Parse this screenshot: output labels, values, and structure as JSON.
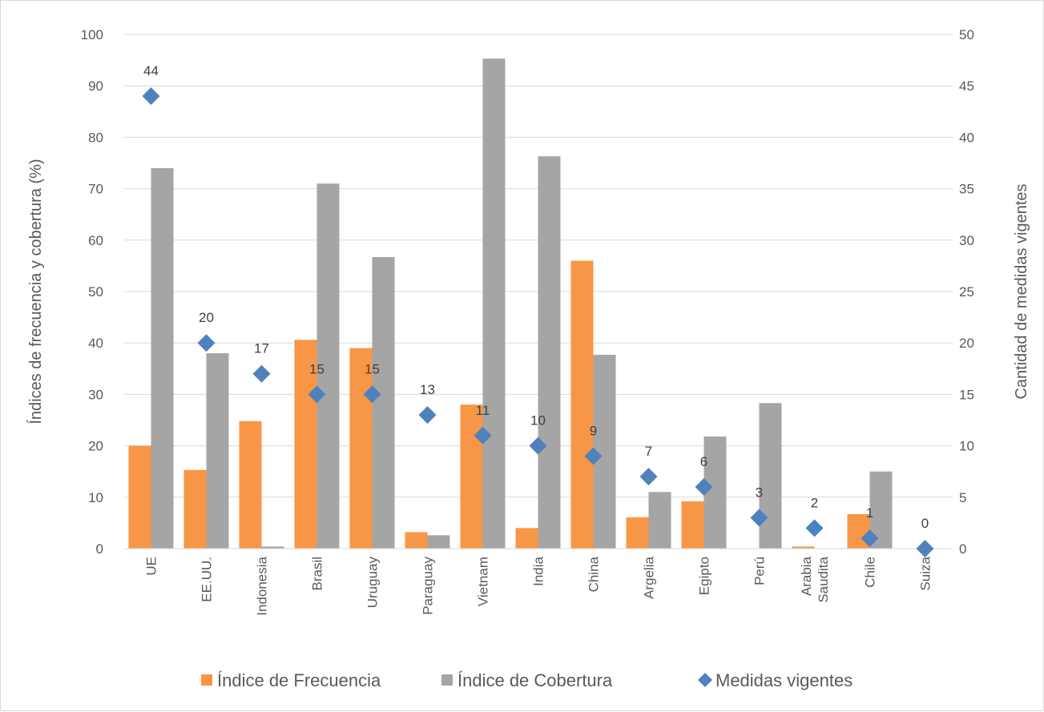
{
  "chart_data": {
    "type": "bar",
    "categories": [
      "UE",
      "EE.UU.",
      "Indonesia",
      "Brasil",
      "Uruguay",
      "Paraguay",
      "Vietnam",
      "India",
      "China",
      "Argelia",
      "Egipto",
      "Perú",
      [
        "Arabia",
        "Saudita"
      ],
      "Chile",
      "Suiza"
    ],
    "series": [
      {
        "name": "Índice de Frecuencia",
        "type": "bar",
        "axis": "left",
        "color": "#f79646",
        "values": [
          20,
          15.3,
          24.8,
          40.6,
          39,
          3.2,
          28,
          4,
          56,
          6.1,
          9.2,
          0,
          0.4,
          6.7,
          0
        ]
      },
      {
        "name": "Índice de Cobertura",
        "type": "bar",
        "axis": "left",
        "color": "#a5a5a5",
        "values": [
          74,
          38,
          0.4,
          71,
          56.7,
          2.6,
          95.3,
          76.3,
          37.7,
          11,
          21.8,
          28.3,
          0,
          15,
          0
        ]
      },
      {
        "name": "Medidas vigentes",
        "type": "scatter",
        "marker": "diamond",
        "axis": "right",
        "color": "#4f81bd",
        "values": [
          44,
          20,
          17,
          15,
          15,
          13,
          11,
          10,
          9,
          7,
          6,
          3,
          2,
          1,
          0
        ]
      }
    ],
    "ylabel": "Índices de frecuencia y cobertura (%)",
    "y2label": "Cantidad de medidas vigentes",
    "ylim": [
      0,
      100
    ],
    "y2lim": [
      0,
      50
    ],
    "yticks": [
      "0",
      "10",
      "20",
      "30",
      "40",
      "50",
      "60",
      "70",
      "80",
      "90",
      "100"
    ],
    "y2ticks": [
      "0",
      "5",
      "10",
      "15",
      "20",
      "25",
      "30",
      "35",
      "40",
      "45",
      "50"
    ],
    "grid": true,
    "legend_position": "bottom"
  }
}
